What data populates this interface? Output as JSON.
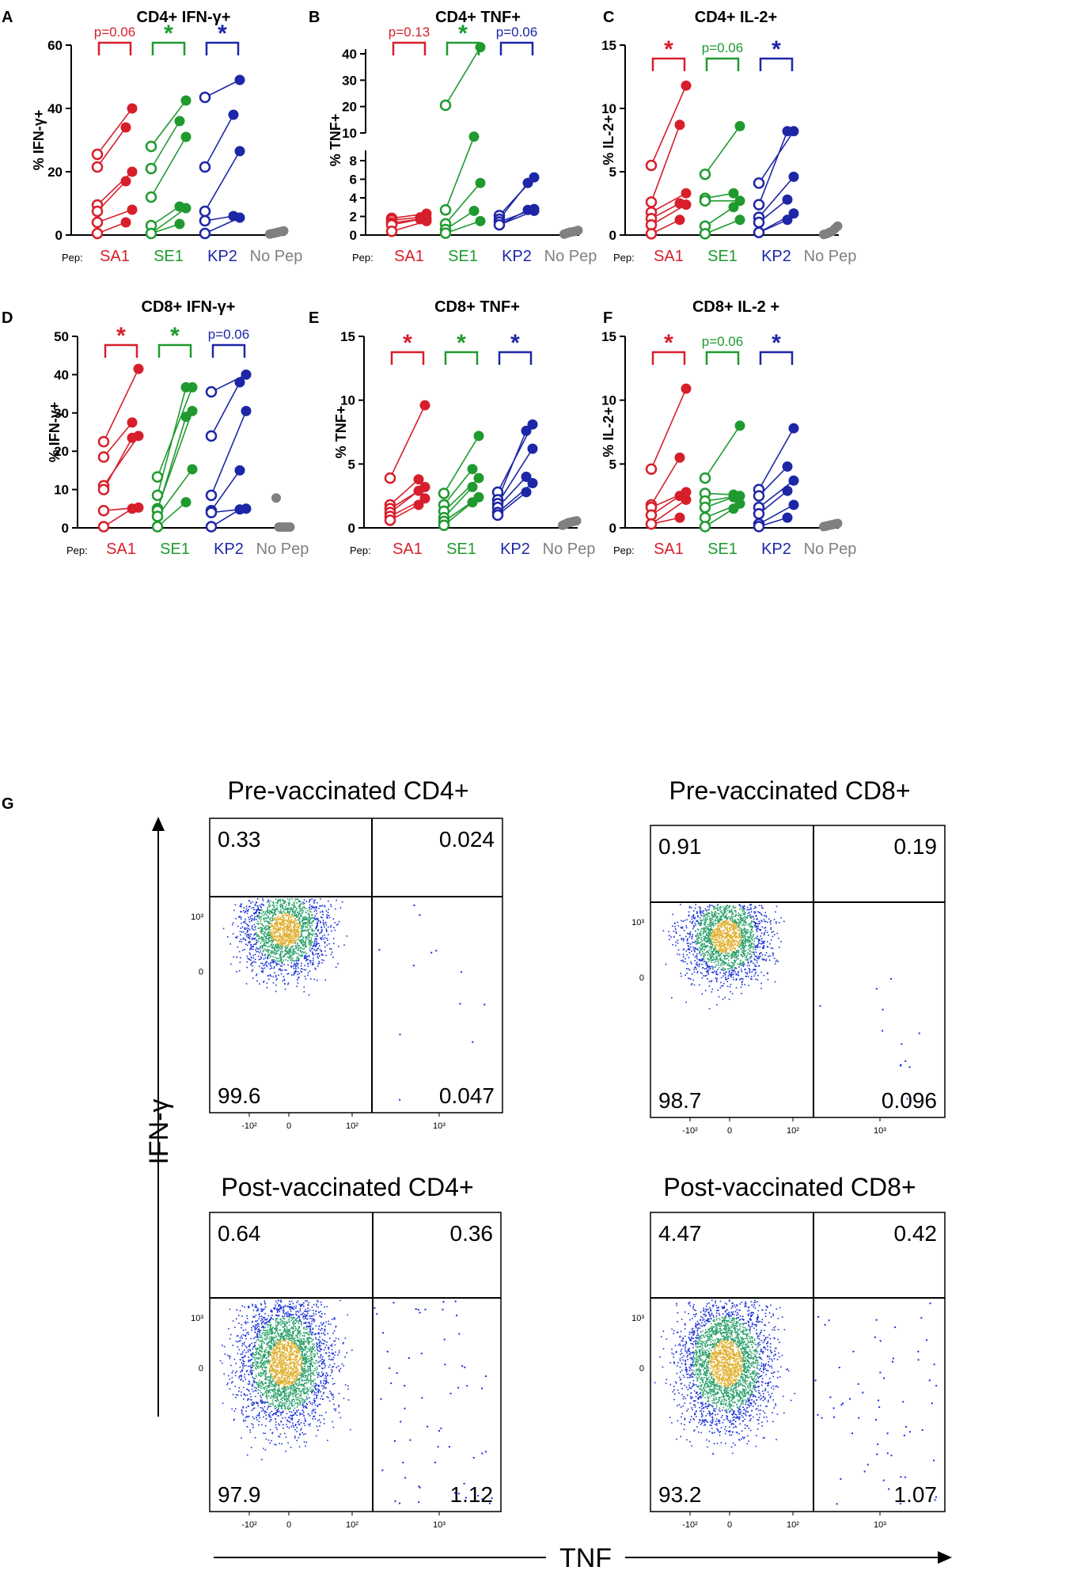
{
  "colors": {
    "SA1": "#d71f2b",
    "SE1": "#1f9a2f",
    "KP2": "#1d26a6",
    "NoPep": "#808080",
    "axis": "#000000"
  },
  "panels": [
    {
      "letter": "A",
      "title": "CD4+ IFN-γ+",
      "ylabel": "% IFN-γ+",
      "yticks": [
        0,
        20,
        40,
        60
      ],
      "ylim": [
        0,
        60
      ],
      "sig": [
        "p=0.06",
        "*",
        "*"
      ]
    },
    {
      "letter": "B",
      "title": "CD4+ TNF+",
      "ylabel": "% TNF+",
      "yticks_low": [
        0,
        2,
        4,
        6,
        8
      ],
      "yticks_high": [
        10,
        20,
        30,
        40
      ],
      "sig": [
        "p=0.13",
        "*",
        "p=0.06"
      ]
    },
    {
      "letter": "C",
      "title": "CD4+ IL-2+",
      "ylabel": "% IL-2+",
      "yticks": [
        0,
        5,
        10,
        15
      ],
      "ylim": [
        0,
        15
      ],
      "sig": [
        "*",
        "p=0.06",
        "*"
      ]
    },
    {
      "letter": "D",
      "title": "CD8+ IFN-γ+",
      "ylabel": "% IFN-γ+",
      "yticks": [
        0,
        10,
        20,
        30,
        40,
        50
      ],
      "ylim": [
        0,
        50
      ],
      "sig": [
        "*",
        "*",
        "p=0.06"
      ]
    },
    {
      "letter": "E",
      "title": "CD8+ TNF+",
      "ylabel": "% TNF+",
      "yticks": [
        0,
        5,
        10,
        15
      ],
      "ylim": [
        0,
        15
      ],
      "sig": [
        "*",
        "*",
        "*"
      ]
    },
    {
      "letter": "F",
      "title": "CD8+ IL-2 +",
      "ylabel": "% IL-2+",
      "yticks": [
        0,
        5,
        10,
        15
      ],
      "ylim": [
        0,
        15
      ],
      "sig": [
        "*",
        "p=0.06",
        "*"
      ]
    }
  ],
  "x_labels": {
    "pep": "Pep:",
    "groups": [
      "SA1",
      "SE1",
      "KP2",
      "No Pep"
    ]
  },
  "chart_data": [
    {
      "type": "scatter",
      "panel": "A",
      "title": "CD4+ IFN-γ+",
      "ylabel": "% IFN-γ+",
      "ylim": [
        0,
        60
      ],
      "series": [
        {
          "name": "SA1",
          "pre": [
            25.5,
            21.5,
            9.5,
            7.5,
            4,
            0.5
          ],
          "post": [
            40,
            34,
            20,
            17,
            8,
            4
          ]
        },
        {
          "name": "SE1",
          "pre": [
            28,
            21,
            12,
            3,
            0.5
          ],
          "post": [
            42.5,
            36,
            31,
            9,
            8.5,
            3.5
          ]
        },
        {
          "name": "KP2",
          "pre": [
            43.5,
            21.5,
            7.5,
            4.5,
            0.5
          ],
          "post": [
            49,
            38,
            26.5,
            6,
            5.5
          ]
        },
        {
          "name": "No Pep",
          "values": [
            0.3,
            0.5,
            0.7,
            0.9,
            1.1,
            1.3
          ]
        }
      ]
    },
    {
      "type": "scatter",
      "panel": "B",
      "title": "CD4+ TNF+",
      "ylabel": "% TNF+",
      "series": [
        {
          "name": "SA1",
          "pre": [
            1.8,
            1.6,
            1.3,
            1.1,
            0.4
          ],
          "post": [
            2.3,
            1.9,
            1.8,
            1.7,
            1.5
          ]
        },
        {
          "name": "SE1",
          "pre": [
            20.5,
            2.7,
            1.2,
            0.6,
            0.2
          ],
          "post": [
            42.5,
            8.6,
            5.6,
            2.6,
            1.5
          ]
        },
        {
          "name": "KP2",
          "pre": [
            2.1,
            1.7,
            1.4,
            1.1
          ],
          "post": [
            6.2,
            5.6,
            2.8,
            2.7,
            2.6
          ]
        },
        {
          "name": "No Pep",
          "values": [
            0.1,
            0.2,
            0.3,
            0.35,
            0.4,
            0.5
          ]
        }
      ]
    },
    {
      "type": "scatter",
      "panel": "C",
      "title": "CD4+ IL-2+",
      "ylabel": "% IL-2+",
      "ylim": [
        0,
        15
      ],
      "series": [
        {
          "name": "SA1",
          "pre": [
            5.5,
            2.6,
            1.8,
            1.3,
            0.8,
            0.1
          ],
          "post": [
            11.8,
            8.7,
            3.3,
            2.5,
            2.4,
            1.2
          ]
        },
        {
          "name": "SE1",
          "pre": [
            4.8,
            2.9,
            2.7,
            0.7,
            0.1
          ],
          "post": [
            8.6,
            3.3,
            2.7,
            2.2,
            1.2
          ]
        },
        {
          "name": "KP2",
          "pre": [
            4.1,
            2.4,
            1.4,
            1.0,
            0.2
          ],
          "post": [
            8.2,
            8.2,
            4.6,
            2.8,
            1.7,
            1.2
          ]
        },
        {
          "name": "No Pep",
          "values": [
            0.05,
            0.1,
            0.2,
            0.3,
            0.5,
            0.7
          ]
        }
      ]
    },
    {
      "type": "scatter",
      "panel": "D",
      "title": "CD8+ IFN-γ+",
      "ylabel": "% IFN-γ+",
      "ylim": [
        0,
        50
      ],
      "series": [
        {
          "name": "SA1",
          "pre": [
            22.5,
            18.5,
            11,
            10,
            4.5,
            0.3
          ],
          "post": [
            41.5,
            27.5,
            24,
            23.5,
            5.3,
            5.0
          ]
        },
        {
          "name": "SE1",
          "pre": [
            13.3,
            8.5,
            5,
            4.5,
            3,
            0.3
          ],
          "post": [
            36.7,
            36.7,
            30.5,
            29,
            15.3,
            6.7
          ]
        },
        {
          "name": "KP2",
          "pre": [
            35.5,
            24,
            8.5,
            4.5,
            4,
            0.3
          ],
          "post": [
            40,
            38,
            30.5,
            15,
            5,
            4.8
          ]
        },
        {
          "name": "No Pep",
          "values": [
            7.8,
            0.2,
            0.2,
            0.2,
            0.2,
            0.2
          ]
        }
      ]
    },
    {
      "type": "scatter",
      "panel": "E",
      "title": "CD8+ TNF+",
      "ylabel": "% TNF+",
      "ylim": [
        0,
        15
      ],
      "series": [
        {
          "name": "SA1",
          "pre": [
            3.9,
            1.8,
            1.5,
            1.2,
            0.9,
            0.6
          ],
          "post": [
            9.6,
            3.8,
            3.2,
            2.9,
            2.3,
            1.8
          ]
        },
        {
          "name": "SE1",
          "pre": [
            2.7,
            1.8,
            1.3,
            0.8,
            0.5,
            0.2
          ],
          "post": [
            7.2,
            4.6,
            3.9,
            3.2,
            2.4,
            2.0
          ]
        },
        {
          "name": "KP2",
          "pre": [
            2.8,
            2.2,
            1.9,
            1.6,
            1.2,
            1.0
          ],
          "post": [
            8.1,
            7.6,
            6.2,
            4.0,
            3.5,
            2.8
          ]
        },
        {
          "name": "No Pep",
          "values": [
            0.2,
            0.3,
            0.4,
            0.45,
            0.5,
            0.55
          ]
        }
      ]
    },
    {
      "type": "scatter",
      "panel": "F",
      "title": "CD8+ IL-2 +",
      "ylabel": "% IL-2+",
      "ylim": [
        0,
        15
      ],
      "series": [
        {
          "name": "SA1",
          "pre": [
            4.6,
            1.8,
            1.6,
            1.0,
            0.3
          ],
          "post": [
            10.9,
            5.5,
            2.8,
            2.5,
            2.2,
            0.8
          ]
        },
        {
          "name": "SE1",
          "pre": [
            3.9,
            2.7,
            2.1,
            1.6,
            0.8,
            0.1
          ],
          "post": [
            8.0,
            2.6,
            2.5,
            2.4,
            1.9,
            1.5
          ]
        },
        {
          "name": "KP2",
          "pre": [
            3.0,
            2.5,
            1.6,
            1.1,
            0.3,
            0.1
          ],
          "post": [
            7.8,
            4.8,
            3.7,
            2.9,
            1.8,
            0.8
          ]
        },
        {
          "name": "No Pep",
          "values": [
            0.1,
            0.15,
            0.2,
            0.25,
            0.3,
            0.35
          ]
        }
      ]
    },
    {
      "type": "scatter",
      "panel": "G",
      "subtype": "flow-cytometry quadrant plots",
      "ylabel": "IFN-γ",
      "xlabel": "TNF",
      "plots": [
        {
          "title": "Pre-vaccinated CD4+",
          "quadrants": {
            "UL": "0.33",
            "UR": "0.024",
            "LL": "99.6",
            "LR": "0.047"
          }
        },
        {
          "title": "Pre-vaccinated CD8+",
          "quadrants": {
            "UL": "0.91",
            "UR": "0.19",
            "LL": "98.7",
            "LR": "0.096"
          }
        },
        {
          "title": "Post-vaccinated CD4+",
          "quadrants": {
            "UL": "0.64",
            "UR": "0.36",
            "LL": "97.9",
            "LR": "1.12"
          }
        },
        {
          "title": "Post-vaccinated CD8+",
          "quadrants": {
            "UL": "4.47",
            "UR": "0.42",
            "LL": "93.2",
            "LR": "1.07"
          }
        }
      ],
      "yticks": [
        "10³",
        "0"
      ],
      "xticks": [
        "-10²",
        "0",
        "10²",
        "10³"
      ]
    }
  ],
  "flow": {
    "panel_letter": "G",
    "ylabel": "IFN-γ",
    "xlabel": "TNF",
    "plots": [
      {
        "title": "Pre-vaccinated CD4+",
        "q": [
          "0.33",
          "0.024",
          "99.6",
          "0.047"
        ]
      },
      {
        "title": "Pre-vaccinated CD8+",
        "q": [
          "0.91",
          "0.19",
          "98.7",
          "0.096"
        ]
      },
      {
        "title": "Post-vaccinated CD4+",
        "q": [
          "0.64",
          "0.36",
          "97.9",
          "1.12"
        ]
      },
      {
        "title": "Post-vaccinated CD8+",
        "q": [
          "4.47",
          "0.42",
          "93.2",
          "1.07"
        ]
      }
    ],
    "ytick_labels": [
      "10³",
      "0"
    ],
    "xtick_labels": [
      "-10²",
      "0",
      "10²",
      "10³"
    ]
  }
}
